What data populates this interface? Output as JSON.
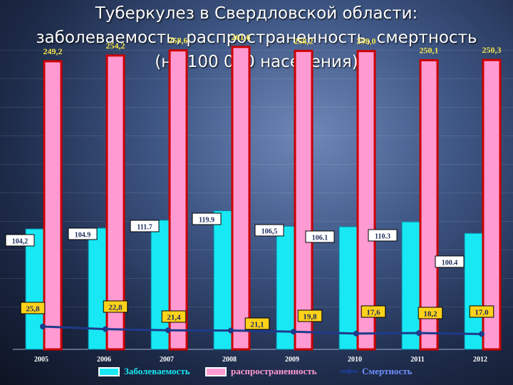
{
  "title": {
    "line1": "Туберкулез в Свердловской области:",
    "line2": "заболеваемость, распространенность, смертность",
    "line3": "(на 100 000 населения)"
  },
  "colors": {
    "incidence": "#18e8f4",
    "prevalence": "#ff9ad2",
    "mortality": "#1f3a8a",
    "bar_border": "#cc0000",
    "label_box": "#ffffff",
    "mortality_box": "#ffd21a"
  },
  "chart_data": {
    "type": "bar",
    "categories": [
      "2005",
      "2006",
      "2007",
      "2008",
      "2009",
      "2010",
      "2011",
      "2012"
    ],
    "series": [
      {
        "name": "Заболеваемость",
        "type": "bar",
        "values": [
          104.2,
          104.9,
          111.7,
          119.9,
          106.5,
          106.1,
          110.3,
          100.4
        ],
        "labels": [
          "104,2",
          "104.9",
          "111.7",
          "119.9",
          "106,5",
          "106.1",
          "110.3",
          "100.4"
        ]
      },
      {
        "name": "распространенность",
        "type": "bar",
        "values": [
          249.2,
          254.2,
          258.6,
          261.6,
          258.2,
          258.0,
          250.1,
          250.3
        ],
        "labels": [
          "249,2",
          "254,2",
          "258,6",
          "261,6",
          "258,2",
          "258,0",
          "250,1",
          "250,3"
        ]
      },
      {
        "name": "Смертность",
        "type": "line",
        "values": [
          25.8,
          22.8,
          21.4,
          21.1,
          19.8,
          17.6,
          18.2,
          17.0
        ],
        "labels": [
          "25,8",
          "22,8",
          "21,4",
          "21,1",
          "19,8",
          "17,6",
          "18,2",
          "17.0"
        ]
      }
    ],
    "ylim": [
      0,
      280
    ],
    "grid": true,
    "legend": "bottom"
  }
}
